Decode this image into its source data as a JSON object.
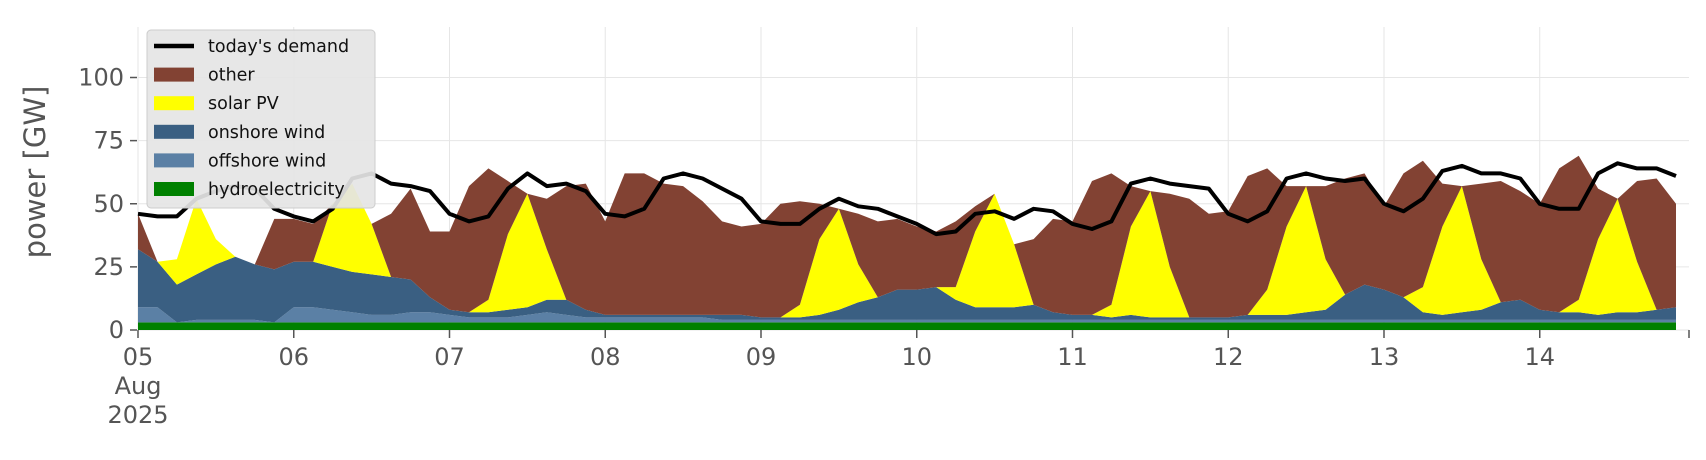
{
  "chart_data": {
    "type": "area",
    "ylabel": "power [GW]",
    "ylim": [
      0,
      120
    ],
    "yticks": [
      0,
      25,
      50,
      75,
      100
    ],
    "x_start": "2025-08-05T00:00",
    "x_end": "2025-08-14T23:00",
    "x_step_hours": 3,
    "xtick_labels": [
      "05",
      "06",
      "07",
      "08",
      "09",
      "10",
      "11",
      "12",
      "13",
      "14"
    ],
    "xtick_sub": [
      "Aug",
      "2025"
    ],
    "grid": true,
    "legend_position": "top-left",
    "series": [
      {
        "name": "hydroelectricity",
        "color": "#008000",
        "values": [
          3,
          3,
          3,
          3,
          3,
          3,
          3,
          3,
          3,
          3,
          3,
          3,
          3,
          3,
          3,
          3,
          3,
          3,
          3,
          3,
          3,
          3,
          3,
          3,
          3,
          3,
          3,
          3,
          3,
          3,
          3,
          3,
          3,
          3,
          3,
          3,
          3,
          3,
          3,
          3,
          3,
          3,
          3,
          3,
          3,
          3,
          3,
          3,
          3,
          3,
          3,
          3,
          3,
          3,
          3,
          3,
          3,
          3,
          3,
          3,
          3,
          3,
          3,
          3,
          3,
          3,
          3,
          3,
          3,
          3,
          3,
          3,
          3,
          3,
          3,
          3,
          3,
          3,
          3,
          3
        ]
      },
      {
        "name": "offshore wind",
        "color": "#5b80a5",
        "values": [
          6,
          6,
          0,
          1,
          1,
          1,
          1,
          0,
          6,
          6,
          5,
          4,
          3,
          3,
          4,
          4,
          3,
          2,
          2,
          2,
          3,
          4,
          3,
          2,
          2,
          2,
          2,
          2,
          2,
          2,
          1,
          1,
          1,
          1,
          1,
          1,
          1,
          1,
          1,
          1,
          1,
          1,
          1,
          1,
          1,
          1,
          1,
          1,
          1,
          1,
          1,
          1,
          1,
          1,
          1,
          1,
          1,
          1,
          1,
          1,
          1,
          1,
          1,
          1,
          1,
          1,
          1,
          1,
          1,
          1,
          1,
          1,
          1,
          1,
          1,
          1,
          1,
          1,
          1,
          1
        ]
      },
      {
        "name": "onshore wind",
        "color": "#3a5f82",
        "values": [
          23,
          18,
          15,
          18,
          22,
          25,
          22,
          21,
          18,
          18,
          17,
          16,
          16,
          15,
          13,
          6,
          2,
          2,
          2,
          3,
          3,
          5,
          6,
          3,
          1,
          1,
          1,
          1,
          1,
          1,
          2,
          2,
          1,
          1,
          1,
          2,
          4,
          7,
          9,
          12,
          12,
          13,
          8,
          5,
          5,
          5,
          6,
          3,
          2,
          2,
          1,
          2,
          1,
          1,
          1,
          1,
          1,
          2,
          2,
          2,
          3,
          4,
          10,
          14,
          12,
          9,
          3,
          2,
          3,
          4,
          7,
          8,
          4,
          3,
          3,
          2,
          3,
          3,
          4,
          5
        ]
      },
      {
        "name": "solar PV",
        "color": "#ffff00",
        "values": [
          0,
          0,
          10,
          30,
          10,
          0,
          0,
          0,
          0,
          0,
          25,
          35,
          20,
          0,
          0,
          0,
          0,
          0,
          5,
          30,
          45,
          20,
          0,
          0,
          0,
          0,
          0,
          0,
          0,
          0,
          0,
          0,
          0,
          0,
          5,
          30,
          40,
          15,
          0,
          0,
          0,
          0,
          5,
          30,
          45,
          25,
          0,
          0,
          0,
          0,
          5,
          35,
          50,
          20,
          0,
          0,
          0,
          0,
          10,
          35,
          50,
          20,
          0,
          0,
          0,
          0,
          10,
          35,
          50,
          20,
          0,
          0,
          0,
          0,
          5,
          30,
          45,
          20,
          0,
          0
        ]
      },
      {
        "name": "other",
        "color": "#824233",
        "values": [
          14,
          0,
          0,
          0,
          0,
          0,
          0,
          20,
          17,
          15,
          0,
          0,
          0,
          25,
          36,
          26,
          31,
          50,
          52,
          21,
          0,
          20,
          45,
          50,
          37,
          56,
          56,
          52,
          51,
          45,
          37,
          35,
          37,
          45,
          41,
          14,
          0,
          20,
          30,
          28,
          25,
          22,
          26,
          10,
          0,
          0,
          26,
          37,
          37,
          53,
          52,
          16,
          0,
          29,
          47,
          41,
          42,
          55,
          48,
          16,
          0,
          29,
          46,
          44,
          33,
          49,
          50,
          17,
          0,
          30,
          48,
          43,
          42,
          57,
          57,
          20,
          0,
          32,
          52,
          41
        ]
      },
      {
        "name": "today's demand",
        "color": "#000000",
        "line": true,
        "values": [
          46,
          45,
          45,
          52,
          55,
          57,
          56,
          48,
          45,
          43,
          48,
          60,
          62,
          58,
          57,
          55,
          46,
          43,
          45,
          56,
          62,
          57,
          58,
          55,
          46,
          45,
          48,
          60,
          62,
          60,
          56,
          52,
          43,
          42,
          42,
          48,
          52,
          49,
          48,
          45,
          42,
          38,
          39,
          46,
          47,
          44,
          48,
          47,
          42,
          40,
          43,
          58,
          60,
          58,
          57,
          56,
          46,
          43,
          47,
          60,
          62,
          60,
          59,
          60,
          50,
          47,
          52,
          63,
          65,
          62,
          62,
          60,
          50,
          48,
          48,
          62,
          66,
          64,
          64,
          61
        ]
      }
    ]
  }
}
